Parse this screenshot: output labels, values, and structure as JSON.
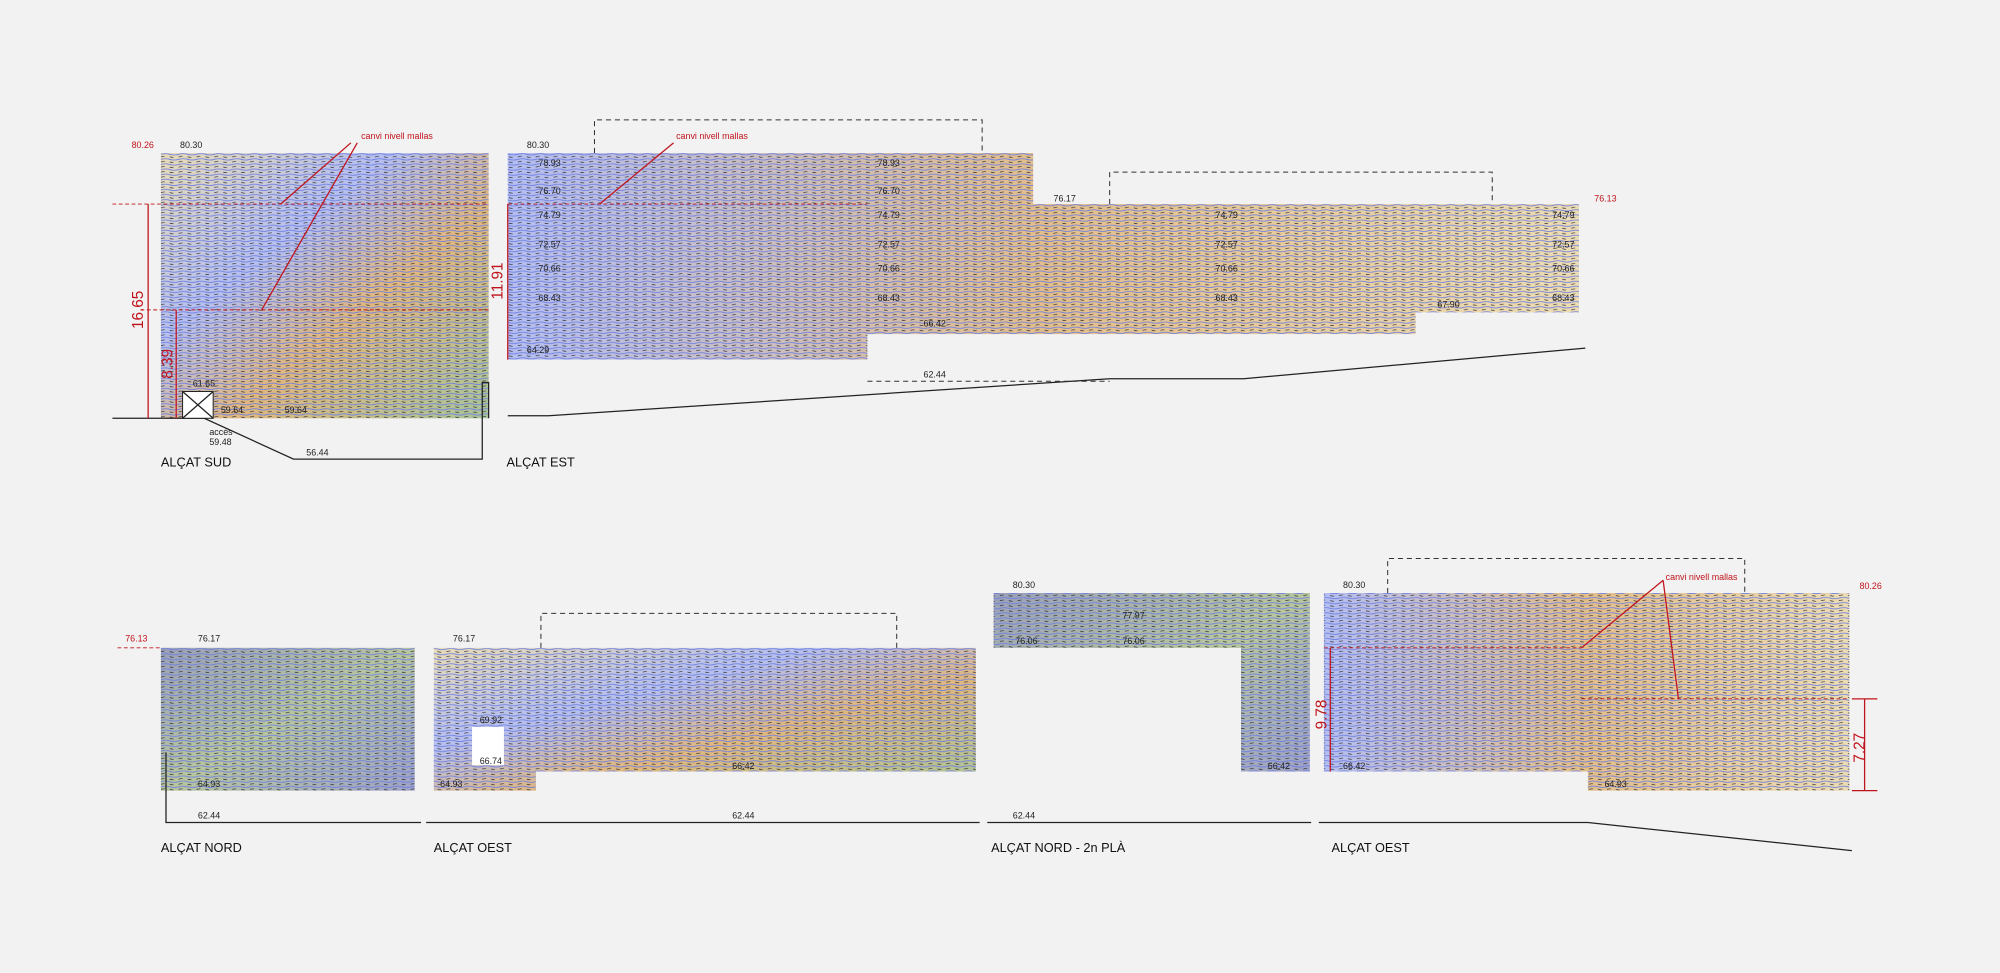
{
  "elevations": [
    {
      "title": "ALÇAT SUD",
      "levels": [
        "80.26",
        "80.30",
        "61.65",
        "59.64",
        "59.64",
        "59.48",
        "56.44"
      ],
      "notes": [
        "accés",
        "canvi nivell mallas"
      ],
      "dimensions": [
        "16.65",
        "8.39"
      ]
    },
    {
      "title": "ALÇAT EST",
      "levels": [
        "80.30",
        "78.93",
        "76.70",
        "74.79",
        "72.57",
        "70.66",
        "68.43",
        "64.29",
        "78.93",
        "76.70",
        "74.79",
        "72.57",
        "70.66",
        "68.43",
        "66.42",
        "62.44",
        "76.17",
        "74.79",
        "72.57",
        "70.66",
        "68.43",
        "67.90",
        "74.79",
        "72.57",
        "70.66",
        "68.43",
        "76.13"
      ],
      "notes": [
        "canvi nivell mallas"
      ],
      "dimensions": [
        "11.91"
      ]
    },
    {
      "title": "ALÇAT NORD",
      "levels": [
        "76.13",
        "76.17",
        "64.93",
        "62.44"
      ]
    },
    {
      "title": "ALÇAT OEST",
      "levels": [
        "76.17",
        "69.92",
        "66.74",
        "64.93",
        "66.42",
        "62.44"
      ]
    },
    {
      "title": "ALÇAT NORD - 2n PLÀ",
      "levels": [
        "80.30",
        "77.97",
        "76.06",
        "76.06",
        "66.42",
        "62.44"
      ]
    },
    {
      "title": "ALÇAT OEST",
      "levels": [
        "80.30",
        "80.26",
        "66.42",
        "64.93"
      ],
      "notes": [
        "canvi nivell mallas"
      ],
      "dimensions": [
        "9.78",
        "7.27"
      ]
    }
  ]
}
